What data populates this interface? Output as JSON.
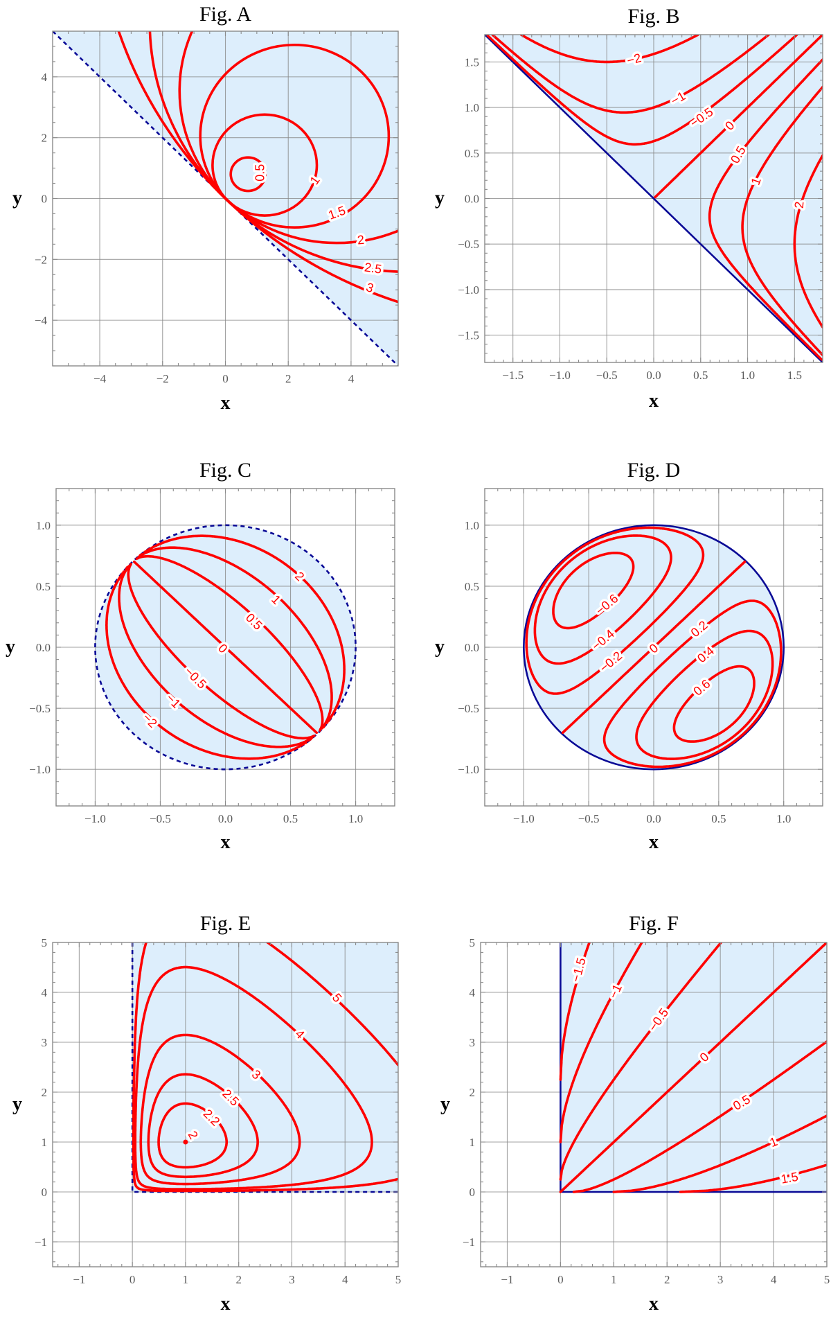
{
  "colors": {
    "contour": "#ff0000",
    "boundary": "#0a0a96",
    "region": "#ddeefc",
    "grid": "#8a8a8a",
    "frame": "#8a8a8a"
  },
  "chart_data": [
    {
      "type": "contour",
      "title": "Fig. A",
      "xlabel": "x",
      "ylabel": "y",
      "xlim": [
        -5.5,
        5.5
      ],
      "ylim": [
        -5.5,
        5.5
      ],
      "grid": true,
      "xticks": [
        -4,
        -2,
        0,
        2,
        4
      ],
      "xtick_labels": [
        "−4",
        "−2",
        "0",
        "2",
        "4"
      ],
      "yticks": [
        -4,
        -2,
        0,
        2,
        4
      ],
      "ytick_labels": [
        "−4",
        "−2",
        "0",
        "2",
        "4"
      ],
      "levels": [
        0.5,
        1,
        1.5,
        2,
        2.5,
        3
      ],
      "level_labels": [
        "0.5",
        "1",
        "1.5",
        "2",
        "2.5",
        "3"
      ]
    },
    {
      "type": "contour",
      "title": "Fig. B",
      "xlabel": "x",
      "ylabel": "y",
      "xlim": [
        -1.8,
        1.8
      ],
      "ylim": [
        -1.8,
        1.8
      ],
      "grid": true,
      "xticks": [
        -1.5,
        -1,
        -0.5,
        0,
        0.5,
        1,
        1.5
      ],
      "xtick_labels": [
        "−1.5",
        "−1.0",
        "−0.5",
        "0.0",
        "0.5",
        "1.0",
        "1.5"
      ],
      "yticks": [
        -1.5,
        -1,
        -0.5,
        0,
        0.5,
        1,
        1.5
      ],
      "ytick_labels": [
        "−1.5",
        "−1.0",
        "−0.5",
        "0.0",
        "0.5",
        "1.0",
        "1.5"
      ],
      "levels": [
        -2,
        -1,
        -0.5,
        0,
        0.5,
        1,
        2
      ],
      "level_labels": [
        "−2",
        "−1",
        "−0.5",
        "0",
        "0.5",
        "1",
        "2"
      ]
    },
    {
      "type": "contour",
      "title": "Fig. C",
      "xlabel": "x",
      "ylabel": "y",
      "xlim": [
        -1.3,
        1.3
      ],
      "ylim": [
        -1.3,
        1.3
      ],
      "grid": true,
      "xticks": [
        -1,
        -0.5,
        0,
        0.5,
        1
      ],
      "xtick_labels": [
        "−1.0",
        "−0.5",
        "0.0",
        "0.5",
        "1.0"
      ],
      "yticks": [
        -1,
        -0.5,
        0,
        0.5,
        1
      ],
      "ytick_labels": [
        "−1.0",
        "−0.5",
        "0.0",
        "0.5",
        "1.0"
      ],
      "levels": [
        -2,
        -1,
        -0.5,
        0,
        0.5,
        1,
        2
      ],
      "level_labels": [
        "−2",
        "−1",
        "−0.5",
        "0",
        "0.5",
        "1",
        "2"
      ]
    },
    {
      "type": "contour",
      "title": "Fig. D",
      "xlabel": "x",
      "ylabel": "y",
      "xlim": [
        -1.3,
        1.3
      ],
      "ylim": [
        -1.3,
        1.3
      ],
      "grid": true,
      "xticks": [
        -1,
        -0.5,
        0,
        0.5,
        1
      ],
      "xtick_labels": [
        "−1.0",
        "−0.5",
        "0.0",
        "0.5",
        "1.0"
      ],
      "yticks": [
        -1,
        -0.5,
        0,
        0.5,
        1
      ],
      "ytick_labels": [
        "−1.0",
        "−0.5",
        "0.0",
        "0.5",
        "1.0"
      ],
      "levels": [
        -0.6,
        -0.4,
        -0.2,
        0,
        0.2,
        0.4,
        0.6
      ],
      "level_labels": [
        "−0.6",
        "−0.4",
        "−0.2",
        "0",
        "0.2",
        "0.4",
        "0.6"
      ]
    },
    {
      "type": "contour",
      "title": "Fig. E",
      "xlabel": "x",
      "ylabel": "y",
      "xlim": [
        -1.5,
        5
      ],
      "ylim": [
        -1.5,
        5
      ],
      "grid": true,
      "xticks": [
        -1,
        0,
        1,
        2,
        3,
        4,
        5
      ],
      "xtick_labels": [
        "−1",
        "0",
        "1",
        "2",
        "3",
        "4",
        "5"
      ],
      "yticks": [
        -1,
        0,
        1,
        2,
        3,
        4,
        5
      ],
      "ytick_labels": [
        "−1",
        "0",
        "1",
        "2",
        "3",
        "4",
        "5"
      ],
      "levels": [
        2,
        2.2,
        2.5,
        3,
        4,
        5
      ],
      "level_labels": [
        "2",
        "2.2",
        "2.5",
        "3",
        "4",
        "5"
      ]
    },
    {
      "type": "contour",
      "title": "Fig. F",
      "xlabel": "x",
      "ylabel": "y",
      "xlim": [
        -1.5,
        5
      ],
      "ylim": [
        -1.5,
        5
      ],
      "grid": true,
      "xticks": [
        -1,
        0,
        1,
        2,
        3,
        4,
        5
      ],
      "xtick_labels": [
        "−1",
        "0",
        "1",
        "2",
        "3",
        "4",
        "5"
      ],
      "yticks": [
        -1,
        0,
        1,
        2,
        3,
        4,
        5
      ],
      "ytick_labels": [
        "−1",
        "0",
        "1",
        "2",
        "3",
        "4",
        "5"
      ],
      "levels": [
        -1.5,
        -1,
        -0.5,
        0,
        0.5,
        1,
        1.5
      ],
      "level_labels": [
        "−1.5",
        "−1",
        "−0.5",
        "0",
        "0.5",
        "1",
        "1.5"
      ]
    }
  ]
}
